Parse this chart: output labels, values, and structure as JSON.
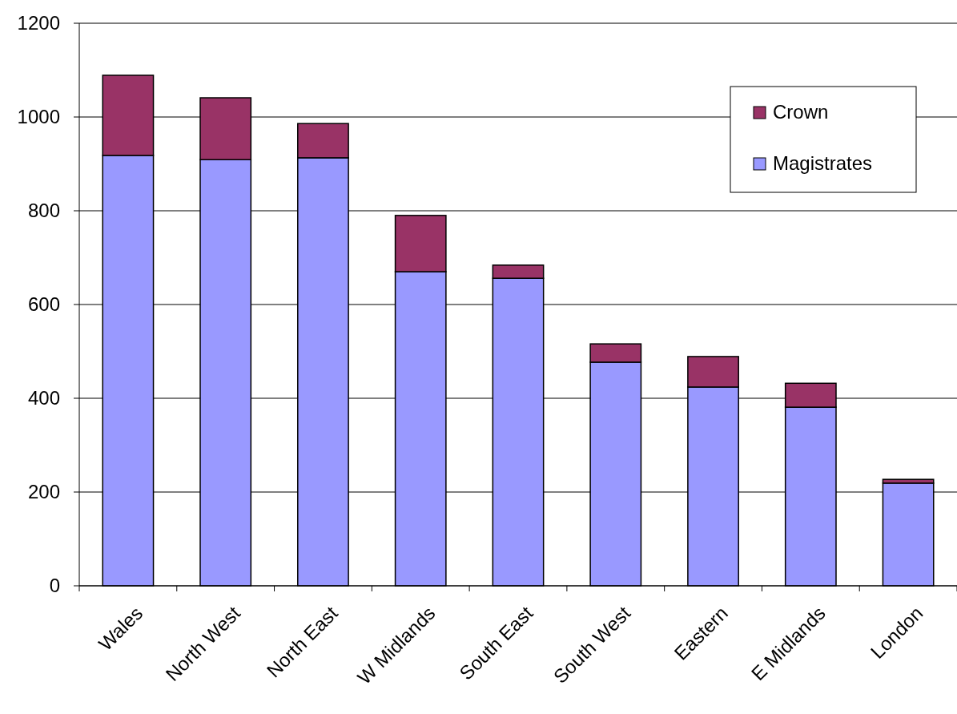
{
  "chart_data": {
    "type": "bar",
    "stacked": true,
    "categories": [
      "Wales",
      "North West",
      "North East",
      "W Midlands",
      "South East",
      "South West",
      "Eastern",
      "E Midlands",
      "London"
    ],
    "series": [
      {
        "name": "Magistrates",
        "color": "#9999ff",
        "values": [
          918,
          909,
          913,
          670,
          656,
          477,
          424,
          381,
          219
        ]
      },
      {
        "name": "Crown",
        "color": "#993366",
        "values": [
          171,
          132,
          73,
          120,
          28,
          39,
          65,
          51,
          8
        ]
      }
    ],
    "ylim": [
      0,
      1200
    ],
    "yticks": [
      0,
      200,
      400,
      600,
      800,
      1000,
      1200
    ],
    "grid": "y",
    "legend": "top right"
  }
}
